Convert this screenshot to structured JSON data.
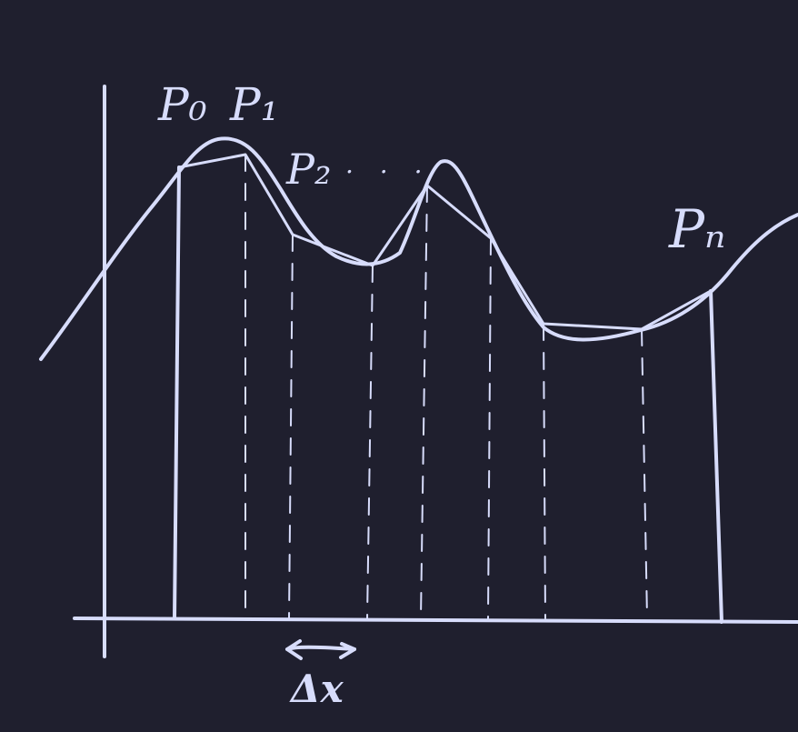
{
  "diagram": {
    "colors": {
      "background": "#1f1f2e",
      "ink": "#d7dcfb"
    },
    "labels": {
      "p0": "P₀",
      "p1": "P₁",
      "p2": "P₂",
      "ellipsis": ". . .",
      "pn": "Pₙ",
      "dx": "Δx"
    }
  }
}
